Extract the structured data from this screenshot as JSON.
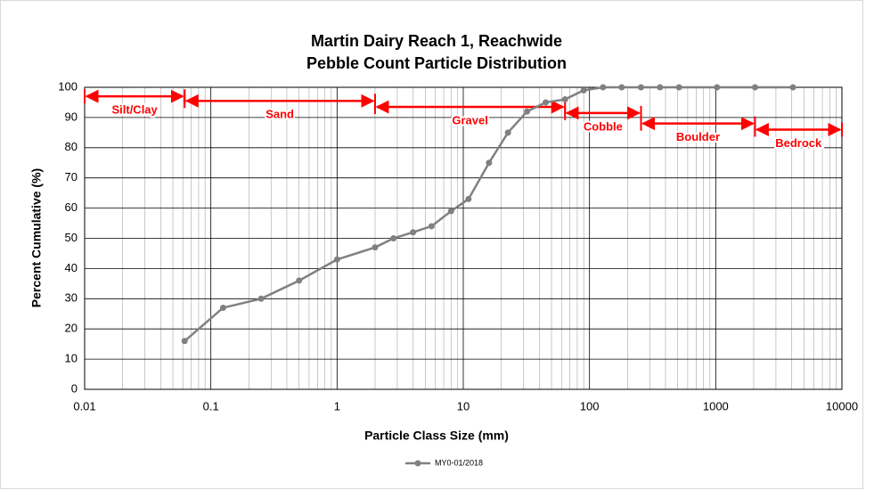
{
  "chart_data": {
    "type": "line",
    "title": "Martin Dairy Reach 1, Reachwide",
    "subtitle": "Pebble Count Particle Distribution",
    "x_label": "Particle Class Size (mm)",
    "y_label": "Percent Cumulative (%)",
    "x_scale": "log",
    "xlim": [
      0.01,
      10000
    ],
    "xticks": [
      0.01,
      0.1,
      1,
      10,
      100,
      1000,
      10000
    ],
    "ylim": [
      0,
      100
    ],
    "yticks": [
      0,
      10,
      20,
      30,
      40,
      50,
      60,
      70,
      80,
      90,
      100
    ],
    "grid": true,
    "x_minor_grid": true,
    "legend": "bottom",
    "x": [
      0.062,
      0.125,
      0.25,
      0.5,
      1,
      2,
      2.8,
      4,
      5.6,
      8,
      11,
      16,
      22.6,
      32,
      45,
      64,
      90,
      128,
      180,
      256,
      362,
      512,
      1024,
      2048,
      4096
    ],
    "series": [
      {
        "name": "MY0-01/2018",
        "color": "#808080",
        "values": [
          16,
          27,
          30,
          36,
          43,
          47,
          50,
          52,
          54,
          59,
          63,
          75,
          85,
          92,
          95,
          96,
          99,
          100,
          100,
          100,
          100,
          100,
          100,
          100,
          100
        ]
      }
    ],
    "annotations": [
      {
        "label": "Silt/Clay",
        "range": [
          0.01,
          0.062
        ],
        "y": 97,
        "color": "#ff0000"
      },
      {
        "label": "Sand",
        "range": [
          0.062,
          2
        ],
        "y": 95.5,
        "color": "#ff0000"
      },
      {
        "label": "Gravel",
        "range": [
          2,
          64
        ],
        "y": 93.5,
        "color": "#ff0000"
      },
      {
        "label": "Cobble",
        "range": [
          64,
          256
        ],
        "y": 91.5,
        "color": "#ff0000"
      },
      {
        "label": "Boulder",
        "range": [
          256,
          2048
        ],
        "y": 88,
        "color": "#ff0000"
      },
      {
        "label": "Bedrock",
        "range": [
          2048,
          10000
        ],
        "y": 86,
        "color": "#ff0000"
      }
    ]
  }
}
